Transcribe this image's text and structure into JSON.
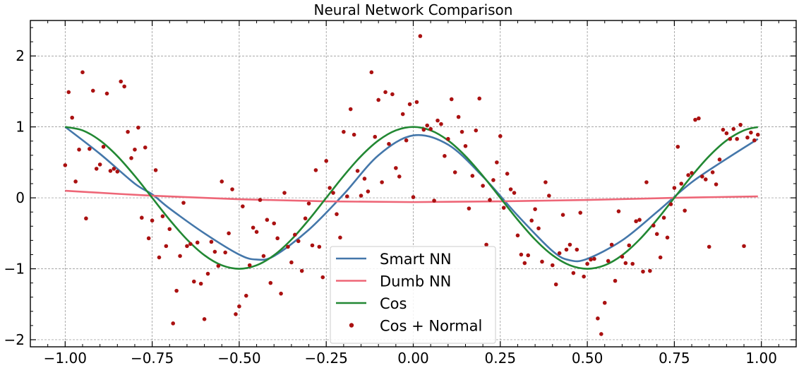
{
  "chart_data": {
    "type": "line",
    "title": "Neural Network Comparison",
    "xlabel": "",
    "ylabel": "",
    "xlim": [
      -1.1,
      1.1
    ],
    "ylim": [
      -2.1,
      2.5
    ],
    "grid": true,
    "legend_position": "bottom-center",
    "x_ticks": [
      -1.0,
      -0.75,
      -0.5,
      -0.25,
      0.0,
      0.25,
      0.5,
      0.75,
      1.0
    ],
    "x_tick_labels": [
      "−1.00",
      "−0.75",
      "−0.50",
      "−0.25",
      "0.00",
      "0.25",
      "0.50",
      "0.75",
      "1.00"
    ],
    "y_ticks": [
      -2,
      -1,
      0,
      1,
      2
    ],
    "y_tick_labels": [
      "−2",
      "−1",
      "0",
      "1",
      "2"
    ],
    "series": [
      {
        "name": "Smart NN",
        "kind": "line",
        "color": "#4477aa",
        "x": [
          -1.0,
          -0.9,
          -0.8,
          -0.75,
          -0.7,
          -0.6,
          -0.5,
          -0.45,
          -0.4,
          -0.3,
          -0.2,
          -0.1,
          0.0,
          0.1,
          0.2,
          0.3,
          0.4,
          0.45,
          0.5,
          0.6,
          0.7,
          0.8,
          0.9,
          0.99
        ],
        "y": [
          1.0,
          0.62,
          0.2,
          0.05,
          -0.15,
          -0.5,
          -0.8,
          -0.87,
          -0.82,
          -0.45,
          0.05,
          0.6,
          0.88,
          0.75,
          0.3,
          -0.25,
          -0.75,
          -0.88,
          -0.86,
          -0.6,
          -0.2,
          0.22,
          0.55,
          0.83
        ]
      },
      {
        "name": "Dumb NN",
        "kind": "line",
        "color": "#ee6677",
        "x": [
          -1.0,
          -0.75,
          -0.5,
          -0.25,
          0.0,
          0.25,
          0.5,
          0.75,
          0.99
        ],
        "y": [
          0.1,
          0.03,
          -0.02,
          -0.05,
          -0.06,
          -0.05,
          -0.03,
          0.0,
          0.02
        ]
      },
      {
        "name": "Cos",
        "kind": "line",
        "color": "#228833",
        "x": [
          -1.0,
          -0.95,
          -0.9,
          -0.85,
          -0.8,
          -0.75,
          -0.7,
          -0.65,
          -0.6,
          -0.55,
          -0.5,
          -0.45,
          -0.4,
          -0.35,
          -0.3,
          -0.25,
          -0.2,
          -0.15,
          -0.1,
          -0.05,
          0.0,
          0.05,
          0.1,
          0.15,
          0.2,
          0.25,
          0.3,
          0.35,
          0.4,
          0.45,
          0.5,
          0.55,
          0.6,
          0.65,
          0.7,
          0.75,
          0.8,
          0.85,
          0.9,
          0.95,
          0.99
        ],
        "y": [
          1.0,
          0.951,
          0.809,
          0.588,
          0.309,
          0.0,
          -0.309,
          -0.588,
          -0.809,
          -0.951,
          -1.0,
          -0.951,
          -0.809,
          -0.588,
          -0.309,
          0.0,
          0.309,
          0.588,
          0.809,
          0.951,
          1.0,
          0.951,
          0.809,
          0.588,
          0.309,
          0.0,
          -0.309,
          -0.588,
          -0.809,
          -0.951,
          -1.0,
          -0.951,
          -0.809,
          -0.588,
          -0.309,
          0.0,
          0.309,
          0.588,
          0.809,
          0.951,
          0.998
        ]
      },
      {
        "name": "Cos + Normal",
        "kind": "scatter",
        "color": "#aa1111",
        "x": [
          -1.0,
          -0.99,
          -0.98,
          -0.97,
          -0.96,
          -0.95,
          -0.94,
          -0.93,
          -0.92,
          -0.91,
          -0.9,
          -0.89,
          -0.88,
          -0.87,
          -0.86,
          -0.85,
          -0.84,
          -0.83,
          -0.82,
          -0.81,
          -0.8,
          -0.79,
          -0.78,
          -0.77,
          -0.76,
          -0.75,
          -0.74,
          -0.73,
          -0.72,
          -0.71,
          -0.7,
          -0.69,
          -0.68,
          -0.67,
          -0.66,
          -0.65,
          -0.64,
          -0.63,
          -0.62,
          -0.61,
          -0.6,
          -0.59,
          -0.58,
          -0.57,
          -0.56,
          -0.55,
          -0.54,
          -0.53,
          -0.52,
          -0.51,
          -0.5,
          -0.49,
          -0.48,
          -0.47,
          -0.46,
          -0.45,
          -0.44,
          -0.43,
          -0.42,
          -0.41,
          -0.4,
          -0.39,
          -0.38,
          -0.37,
          -0.36,
          -0.35,
          -0.34,
          -0.33,
          -0.32,
          -0.31,
          -0.3,
          -0.29,
          -0.28,
          -0.27,
          -0.26,
          -0.25,
          -0.24,
          -0.23,
          -0.22,
          -0.21,
          -0.2,
          -0.19,
          -0.18,
          -0.17,
          -0.16,
          -0.15,
          -0.14,
          -0.13,
          -0.12,
          -0.11,
          -0.1,
          -0.09,
          -0.08,
          -0.07,
          -0.06,
          -0.05,
          -0.04,
          -0.03,
          -0.02,
          -0.01,
          0.0,
          0.01,
          0.02,
          0.03,
          0.04,
          0.05,
          0.06,
          0.07,
          0.08,
          0.09,
          0.1,
          0.11,
          0.12,
          0.13,
          0.14,
          0.15,
          0.16,
          0.17,
          0.18,
          0.19,
          0.2,
          0.21,
          0.22,
          0.23,
          0.24,
          0.25,
          0.26,
          0.27,
          0.28,
          0.29,
          0.3,
          0.31,
          0.32,
          0.33,
          0.34,
          0.35,
          0.36,
          0.37,
          0.38,
          0.39,
          0.4,
          0.41,
          0.42,
          0.43,
          0.44,
          0.45,
          0.46,
          0.47,
          0.48,
          0.49,
          0.5,
          0.51,
          0.52,
          0.53,
          0.54,
          0.55,
          0.56,
          0.57,
          0.58,
          0.59,
          0.6,
          0.61,
          0.62,
          0.63,
          0.64,
          0.65,
          0.66,
          0.67,
          0.68,
          0.69,
          0.7,
          0.71,
          0.72,
          0.73,
          0.74,
          0.75,
          0.76,
          0.77,
          0.78,
          0.79,
          0.8,
          0.81,
          0.82,
          0.83,
          0.84,
          0.85,
          0.86,
          0.87,
          0.88,
          0.89,
          0.9,
          0.91,
          0.92,
          0.93,
          0.94,
          0.95,
          0.96,
          0.97,
          0.98,
          0.99
        ],
        "y": [
          0.46,
          1.49,
          1.13,
          0.23,
          0.68,
          1.77,
          -0.29,
          0.69,
          1.51,
          0.41,
          0.47,
          0.72,
          1.47,
          0.38,
          0.41,
          0.37,
          1.64,
          1.57,
          0.93,
          0.56,
          0.68,
          0.99,
          -0.28,
          0.71,
          -0.57,
          -0.32,
          0.39,
          -0.84,
          -0.26,
          -0.68,
          -0.44,
          -1.77,
          -1.31,
          -0.82,
          -0.07,
          -0.68,
          -0.65,
          -1.18,
          -0.63,
          -1.21,
          -1.71,
          -1.07,
          -0.62,
          -0.76,
          -0.96,
          0.23,
          -0.77,
          -0.5,
          0.12,
          -1.64,
          -1.53,
          -0.12,
          -1.38,
          -0.95,
          -0.42,
          -0.48,
          -0.03,
          -0.82,
          -0.31,
          -1.2,
          -0.36,
          -0.57,
          -1.35,
          0.07,
          -0.69,
          -0.91,
          -0.52,
          -0.61,
          -1.03,
          -0.29,
          -0.08,
          -0.67,
          0.39,
          -0.69,
          -1.12,
          0.52,
          0.14,
          0.07,
          -0.23,
          -0.56,
          0.93,
          0.02,
          1.25,
          0.89,
          0.38,
          0.03,
          0.27,
          0.09,
          1.77,
          0.86,
          1.38,
          0.22,
          1.49,
          0.76,
          1.46,
          0.42,
          0.3,
          1.18,
          0.81,
          1.32,
          0.01,
          1.35,
          2.28,
          0.96,
          1.02,
          0.97,
          -0.04,
          1.09,
          1.04,
          0.59,
          0.83,
          1.39,
          0.36,
          1.14,
          0.93,
          0.73,
          -0.15,
          0.31,
          0.95,
          1.4,
          0.17,
          -0.66,
          -0.03,
          0.25,
          0.5,
          0.87,
          -0.14,
          0.34,
          0.12,
          0.07,
          -0.53,
          -0.8,
          -0.92,
          -0.81,
          -0.32,
          -0.16,
          -0.43,
          -0.9,
          0.22,
          0.03,
          -0.95,
          -1.22,
          -0.78,
          -0.24,
          -0.73,
          -0.66,
          -1.06,
          -0.73,
          -0.21,
          -1.11,
          -0.93,
          -0.87,
          -0.86,
          -1.7,
          -1.92,
          -1.48,
          -0.89,
          -0.66,
          -1.17,
          -0.19,
          -0.83,
          -0.92,
          -0.67,
          -0.93,
          -0.33,
          -0.31,
          -1.04,
          0.22,
          -1.03,
          -0.39,
          -0.51,
          -0.84,
          -0.28,
          -0.56,
          -0.09,
          0.14,
          0.72,
          0.2,
          -0.18,
          0.32,
          0.35,
          1.1,
          1.12,
          0.3,
          0.26,
          -0.69,
          0.36,
          0.19,
          0.54,
          0.96,
          0.91,
          0.83,
          0.97,
          0.83,
          1.03,
          -0.68,
          0.85,
          0.92,
          0.81,
          0.89
        ]
      }
    ]
  }
}
